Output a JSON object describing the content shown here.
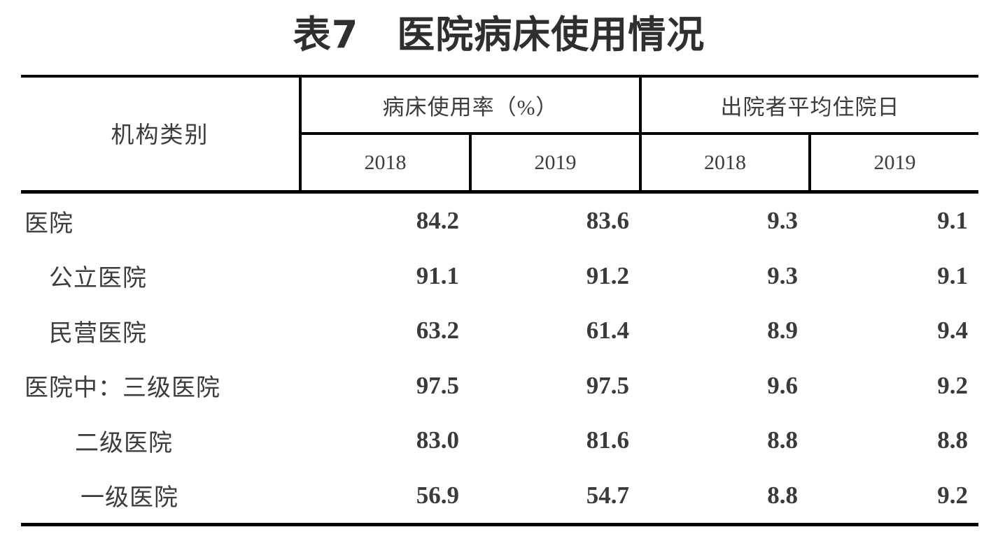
{
  "title": "表7　医院病床使用情况",
  "table": {
    "stub_header": "机构类别",
    "col_groups": [
      {
        "label": "病床使用率（%）",
        "years": [
          "2018",
          "2019"
        ]
      },
      {
        "label": "出院者平均住院日",
        "years": [
          "2018",
          "2019"
        ]
      }
    ],
    "rows": [
      {
        "label": "医院",
        "indent": 0,
        "values": [
          "84.2",
          "83.6",
          "9.3",
          "9.1"
        ]
      },
      {
        "label": "公立医院",
        "indent": 1,
        "values": [
          "91.1",
          "91.2",
          "9.3",
          "9.1"
        ]
      },
      {
        "label": "民营医院",
        "indent": 1,
        "values": [
          "63.2",
          "61.4",
          "8.9",
          "9.4"
        ]
      },
      {
        "label": "医院中：三级医院",
        "indent": 0,
        "values": [
          "97.5",
          "97.5",
          "9.6",
          "9.2"
        ]
      },
      {
        "label": "二级医院",
        "indent": 2,
        "values": [
          "83.0",
          "81.6",
          "8.8",
          "8.8"
        ]
      },
      {
        "label": "一级医院",
        "indent": 3,
        "values": [
          "56.9",
          "54.7",
          "8.8",
          "9.2"
        ]
      }
    ]
  }
}
